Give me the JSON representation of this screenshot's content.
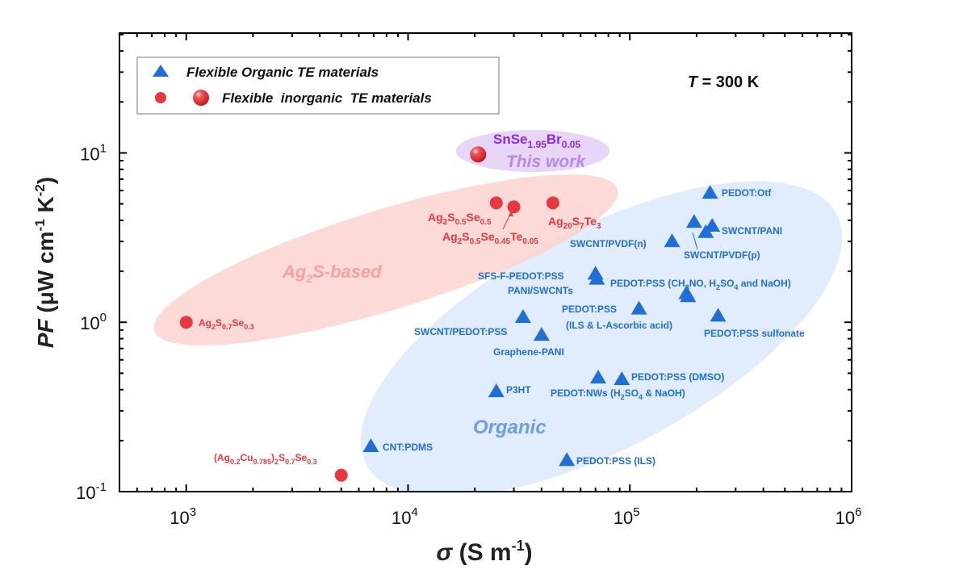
{
  "chart_data": {
    "type": "scatter",
    "title": "",
    "xlabel": "σ (S m⁻¹)",
    "xlabel_parts": {
      "sym": "σ",
      "rest": " (S m",
      "sup": "-1",
      "tail": ")"
    },
    "ylabel_parts": {
      "sym": "PF",
      "rest": " (μW cm",
      "sup1": "-1",
      "mid": " K",
      "sup2": "-2",
      "tail": ")"
    },
    "xscale": "log",
    "yscale": "log",
    "xlim": [
      500,
      1000000
    ],
    "ylim": [
      0.1,
      51
    ],
    "x_ticks": [
      {
        "base": "10",
        "exp": "3",
        "value": 1000
      },
      {
        "base": "10",
        "exp": "4",
        "value": 10000
      },
      {
        "base": "10",
        "exp": "5",
        "value": 100000
      },
      {
        "base": "10",
        "exp": "6",
        "value": 1000000
      }
    ],
    "y_ticks": [
      {
        "base": "10",
        "exp": "-1",
        "value": 0.1
      },
      {
        "base": "10",
        "exp": "0",
        "value": 1
      },
      {
        "base": "10",
        "exp": "1",
        "value": 10
      }
    ],
    "grid": false,
    "annotation_temperature": {
      "italic": "T",
      "rest": " = 300 K"
    },
    "legend": {
      "position": "top-left",
      "entries": [
        {
          "label": "Flexible Organic TE materials",
          "marker": "triangle",
          "color": "#1f6fd6"
        },
        {
          "label": "Flexible  inorganic  TE materials",
          "marker": "circle+sphere",
          "color": "#e8383d"
        }
      ]
    },
    "regions": [
      {
        "name": "this-work-region",
        "label": "This work",
        "color": "#c9a8ef"
      },
      {
        "name": "ag2s-region",
        "label_main": "Ag",
        "label_sub": "2",
        "label_tail": "S-based",
        "color": "#f9c9c6"
      },
      {
        "name": "organic-region",
        "label": "Organic",
        "color": "#d6e6fa"
      }
    ],
    "series": [
      {
        "name": "Flexible inorganic TE materials",
        "marker": "circle",
        "color": "#e8383d",
        "points": [
          {
            "x": 20700,
            "y": 9.8,
            "label": "SnSe1.95Br0.05",
            "highlight": true
          },
          {
            "x": 25000,
            "y": 5.07,
            "label": "Ag2S0.5Se0.5"
          },
          {
            "x": 30000,
            "y": 4.8,
            "label": "Ag2S0.5Se0.45Te0.05"
          },
          {
            "x": 45000,
            "y": 5.07,
            "label": "Ag20S7Te3"
          },
          {
            "x": 1000,
            "y": 1.0,
            "label": "Ag2S0.7Se0.3"
          },
          {
            "x": 5000,
            "y": 0.125,
            "label": "(Ag0.2Cu0.785)2S0.7Se0.3"
          }
        ]
      },
      {
        "name": "Flexible Organic TE materials",
        "marker": "triangle",
        "color": "#1f6fd6",
        "points": [
          {
            "x": 230000,
            "y": 5.8,
            "label": "PEDOT:Otf"
          },
          {
            "x": 195000,
            "y": 3.9,
            "label": "SWCNT/PVDF(p)"
          },
          {
            "x": 220000,
            "y": 3.4,
            "label": "SWCNT/PVDF(p)"
          },
          {
            "x": 235000,
            "y": 3.7,
            "label": "SWCNT/PANI"
          },
          {
            "x": 155000,
            "y": 3.0,
            "label": "SWCNT/PVDF(n)"
          },
          {
            "x": 70000,
            "y": 1.93,
            "label": "SFS-F-PEDOT:PSS"
          },
          {
            "x": 71000,
            "y": 1.8,
            "label": "PANI/SWCNTs"
          },
          {
            "x": 180000,
            "y": 1.48,
            "label": "PEDOT:PSS (CH3NO, H2SO4 and NaOH)"
          },
          {
            "x": 183000,
            "y": 1.42,
            "label": "PEDOT:PSS (CH3NO, H2SO4 and NaOH)"
          },
          {
            "x": 110000,
            "y": 1.2,
            "label": "PEDOT:PSS (ILS & L-Ascorbic acid)"
          },
          {
            "x": 250000,
            "y": 1.09,
            "label": "PEDOT:PSS sulfonate"
          },
          {
            "x": 33000,
            "y": 1.07,
            "label": "SWCNT/PEDOT:PSS"
          },
          {
            "x": 40000,
            "y": 0.84,
            "label": "Graphene-PANI"
          },
          {
            "x": 25000,
            "y": 0.39,
            "label": "P3HT"
          },
          {
            "x": 72000,
            "y": 0.47,
            "label": "PEDOT:NWs (H2SO4 & NaOH)"
          },
          {
            "x": 92000,
            "y": 0.46,
            "label": "PEDOT:PSS (DMSO)"
          },
          {
            "x": 6800,
            "y": 0.185,
            "label": "CNT:PDMS"
          },
          {
            "x": 52000,
            "y": 0.153,
            "label": "PEDOT:PSS (ILS)"
          }
        ]
      }
    ],
    "labels": {
      "snse": {
        "a": "SnSe",
        "s1": "1.95",
        "b": "Br",
        "s2": "0.05"
      },
      "this_work": "This work",
      "ag2s_based": {
        "a": "Ag",
        "s": "2",
        "b": "S-based"
      },
      "organic": "Organic",
      "ag2s05se05": [
        [
          "Ag",
          ""
        ],
        [
          "2",
          "sub"
        ],
        [
          "S",
          ""
        ],
        [
          "0.5",
          "sub"
        ],
        [
          "Se",
          ""
        ],
        [
          "0.5",
          "sub"
        ]
      ],
      "ag2s05se045te005": [
        [
          "Ag",
          ""
        ],
        [
          "2",
          "sub"
        ],
        [
          "S",
          ""
        ],
        [
          "0.5",
          "sub"
        ],
        [
          "Se",
          ""
        ],
        [
          "0.45",
          "sub"
        ],
        [
          "Te",
          ""
        ],
        [
          "0.05",
          "sub"
        ]
      ],
      "ag20s7te3": [
        [
          "Ag",
          ""
        ],
        [
          "20",
          "sub"
        ],
        [
          "S",
          ""
        ],
        [
          "7",
          "sub"
        ],
        [
          "Te",
          ""
        ],
        [
          "3",
          "sub"
        ]
      ],
      "ag2s07se03": [
        [
          "Ag",
          ""
        ],
        [
          "2",
          "sub"
        ],
        [
          "S",
          ""
        ],
        [
          "0.7",
          "sub"
        ],
        [
          "Se",
          ""
        ],
        [
          "0.3",
          "sub"
        ]
      ],
      "agcu": [
        [
          "(Ag",
          ""
        ],
        [
          "0.2",
          "sub"
        ],
        [
          "Cu",
          ""
        ],
        [
          "0.785",
          "sub"
        ],
        [
          ")",
          ""
        ],
        [
          "2",
          "sub"
        ],
        [
          "S",
          ""
        ],
        [
          "0.7",
          "sub"
        ],
        [
          "Se",
          ""
        ],
        [
          "0.3",
          "sub"
        ]
      ],
      "pedot_otf": [
        [
          "PEDOT:Otf",
          ""
        ]
      ],
      "swcnt_pani": [
        [
          "SWCNT/PANI",
          ""
        ]
      ],
      "swcnt_pvdf_n": [
        [
          "SWCNT/PVDF(n)",
          ""
        ]
      ],
      "swcnt_pvdf_p": [
        [
          "SWCNT/PVDF(p)",
          ""
        ]
      ],
      "sfs": [
        [
          "SFS-F-PEDOT:PSS",
          ""
        ]
      ],
      "pani_swcnts": [
        [
          "PANI/SWCNTs",
          ""
        ]
      ],
      "pedot_ch3no": [
        [
          "PEDOT:PSS (CH",
          ""
        ],
        [
          "3",
          "sub"
        ],
        [
          "NO, H",
          ""
        ],
        [
          "2",
          "sub"
        ],
        [
          "SO",
          ""
        ],
        [
          "4",
          "sub"
        ],
        [
          " and NaOH)",
          ""
        ]
      ],
      "pedot_ils_asc1": [
        [
          "PEDOT:PSS",
          ""
        ]
      ],
      "pedot_ils_asc2": [
        [
          "(ILS & L-Ascorbic acid)",
          ""
        ]
      ],
      "pedot_sulf": [
        [
          "PEDOT:PSS sulfonate",
          ""
        ]
      ],
      "swcnt_pedot": [
        [
          "SWCNT/PEDOT:PSS",
          ""
        ]
      ],
      "graphene": [
        [
          "Graphene-PANI",
          ""
        ]
      ],
      "p3ht": [
        [
          "P3HT",
          ""
        ]
      ],
      "pedot_nws": [
        [
          "PEDOT:NWs (H",
          ""
        ],
        [
          "2",
          "sub"
        ],
        [
          "SO",
          ""
        ],
        [
          "4",
          "sub"
        ],
        [
          " & NaOH)",
          ""
        ]
      ],
      "pedot_dmso": [
        [
          "PEDOT:PSS (DMSO)",
          ""
        ]
      ],
      "cnt_pdms": [
        [
          "CNT:PDMS",
          ""
        ]
      ],
      "pedot_ils": [
        [
          "PEDOT:PSS (ILS)",
          ""
        ]
      ]
    }
  }
}
